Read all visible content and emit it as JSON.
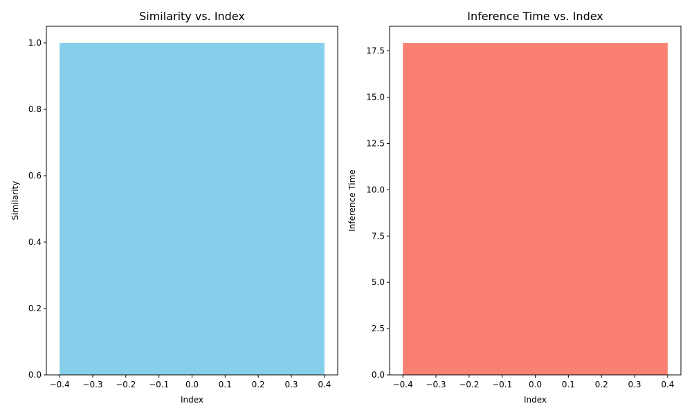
{
  "chart_data": [
    {
      "type": "bar",
      "title": "Similarity vs. Index",
      "xlabel": "Index",
      "ylabel": "Similarity",
      "x": [
        0
      ],
      "values": [
        1.0
      ],
      "bar_width": 0.8,
      "xlim": [
        -0.44,
        0.44
      ],
      "ylim": [
        0,
        1.05
      ],
      "xticks": [
        -0.4,
        -0.3,
        -0.2,
        -0.1,
        0.0,
        0.1,
        0.2,
        0.3,
        0.4
      ],
      "xtick_labels": [
        "−0.4",
        "−0.3",
        "−0.2",
        "−0.1",
        "0.0",
        "0.1",
        "0.2",
        "0.3",
        "0.4"
      ],
      "yticks": [
        0.0,
        0.2,
        0.4,
        0.6,
        0.8,
        1.0
      ],
      "ytick_labels": [
        "0.0",
        "0.2",
        "0.4",
        "0.6",
        "0.8",
        "1.0"
      ],
      "color": "#87ceeb",
      "grid": false,
      "legend": null
    },
    {
      "type": "bar",
      "title": "Inference Time vs. Index",
      "xlabel": "Index",
      "ylabel": "Inference Time",
      "x": [
        0
      ],
      "values": [
        17.93
      ],
      "bar_width": 0.8,
      "xlim": [
        -0.44,
        0.44
      ],
      "ylim": [
        0,
        18.83
      ],
      "xticks": [
        -0.4,
        -0.3,
        -0.2,
        -0.1,
        0.0,
        0.1,
        0.2,
        0.3,
        0.4
      ],
      "xtick_labels": [
        "−0.4",
        "−0.3",
        "−0.2",
        "−0.1",
        "0.0",
        "0.1",
        "0.2",
        "0.3",
        "0.4"
      ],
      "yticks": [
        0.0,
        2.5,
        5.0,
        7.5,
        10.0,
        12.5,
        15.0,
        17.5
      ],
      "ytick_labels": [
        "0.0",
        "2.5",
        "5.0",
        "7.5",
        "10.0",
        "12.5",
        "15.0",
        "17.5"
      ],
      "color": "#fa8072",
      "grid": false,
      "legend": null
    }
  ]
}
